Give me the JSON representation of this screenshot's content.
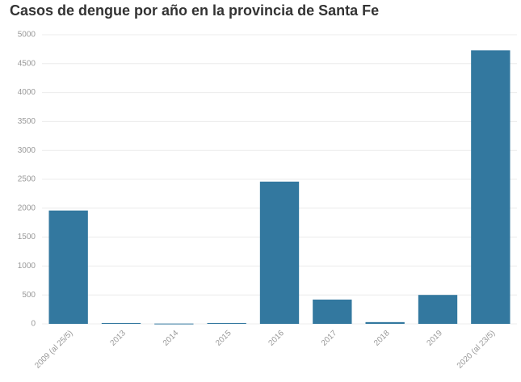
{
  "chart_data": {
    "type": "bar",
    "title": "Casos de dengue por año en la provincia de Santa Fe",
    "categories": [
      "2009 (al 25/5)",
      "2013",
      "2014",
      "2015",
      "2016",
      "2017",
      "2018",
      "2019",
      "2020 (al 23/5)"
    ],
    "values": [
      1960,
      15,
      5,
      15,
      2460,
      420,
      30,
      500,
      4730
    ],
    "color": "#33789f",
    "ylim": [
      0,
      5000
    ],
    "yticks": [
      0,
      500,
      1000,
      1500,
      2000,
      2500,
      3000,
      3500,
      4000,
      4500,
      5000
    ],
    "grid": true
  }
}
